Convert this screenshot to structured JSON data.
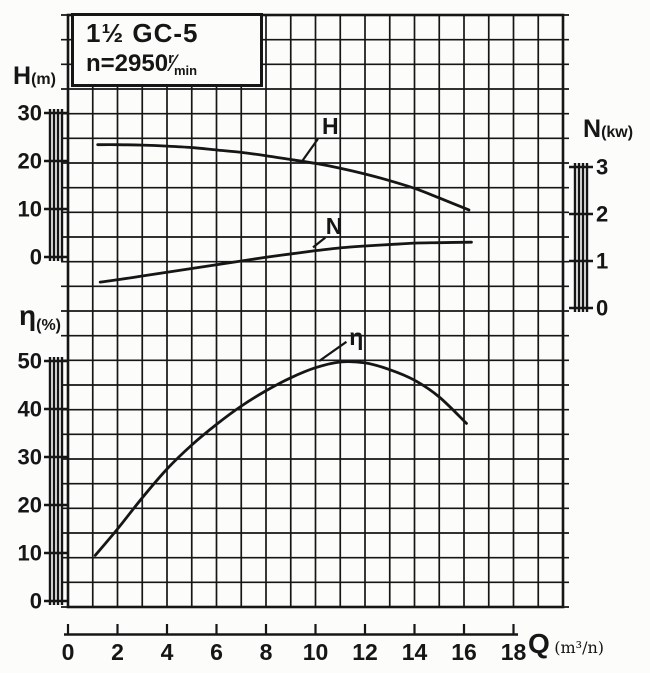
{
  "meta": {
    "ink": "#161616",
    "paper": "#fcfcfa"
  },
  "title_box": {
    "model": "1½ GC-5",
    "speed_prefix": "n=2950",
    "speed_numerator": "r",
    "speed_slash": "⁄",
    "speed_denominator": "min"
  },
  "axes": {
    "H": {
      "label": "H",
      "unit": "(m)"
    },
    "N": {
      "label": "N",
      "unit": "(kw)"
    },
    "eta": {
      "label": "η",
      "unit": "(%)"
    },
    "Q": {
      "label": "Q",
      "unit": "(m³/n)"
    }
  },
  "chart_data": {
    "type": "line",
    "title": "1½ GC-5  n=2950 r/min  pump performance curves",
    "xlabel": "Q (m³/n)",
    "x_ticks": [
      0,
      2,
      4,
      6,
      8,
      10,
      12,
      14,
      16,
      18
    ],
    "x_grid_range": [
      0,
      20
    ],
    "grid": "on",
    "legend": "curve labels with leader lines",
    "series": [
      {
        "name": "H",
        "axis": "H",
        "ylabel": "H (m)",
        "ylim": [
          0,
          30
        ],
        "ticks": [
          0,
          10,
          20,
          30
        ],
        "points": [
          [
            1.2,
            23.4
          ],
          [
            2,
            23.4
          ],
          [
            3,
            23.3
          ],
          [
            4,
            23.1
          ],
          [
            5,
            22.8
          ],
          [
            6,
            22.3
          ],
          [
            7,
            21.8
          ],
          [
            8,
            21.1
          ],
          [
            9,
            20.3
          ],
          [
            10,
            19.5
          ],
          [
            11,
            18.5
          ],
          [
            12,
            17.3
          ],
          [
            13,
            15.9
          ],
          [
            14,
            14.3
          ],
          [
            15,
            12.3
          ],
          [
            16.2,
            9.8
          ]
        ]
      },
      {
        "name": "N",
        "axis": "N",
        "ylabel": "N (kw)",
        "ylim": [
          0,
          3
        ],
        "ticks": [
          0,
          1,
          2,
          3
        ],
        "points": [
          [
            1.3,
            0.55
          ],
          [
            2,
            0.6
          ],
          [
            3,
            0.68
          ],
          [
            4,
            0.76
          ],
          [
            5,
            0.84
          ],
          [
            6,
            0.92
          ],
          [
            7,
            1.0
          ],
          [
            8,
            1.08
          ],
          [
            9,
            1.15
          ],
          [
            10,
            1.22
          ],
          [
            11,
            1.28
          ],
          [
            12,
            1.32
          ],
          [
            13,
            1.35
          ],
          [
            14,
            1.38
          ],
          [
            15,
            1.39
          ],
          [
            16.3,
            1.4
          ]
        ]
      },
      {
        "name": "η",
        "axis": "eta",
        "ylabel": "η (%)",
        "ylim": [
          0,
          50
        ],
        "ticks": [
          0,
          10,
          20,
          30,
          40,
          50
        ],
        "points": [
          [
            1.1,
            9.5
          ],
          [
            2,
            15
          ],
          [
            3,
            21.5
          ],
          [
            4,
            27.5
          ],
          [
            5,
            32.5
          ],
          [
            6,
            36.8
          ],
          [
            7,
            40.6
          ],
          [
            8,
            43.8
          ],
          [
            9,
            46.5
          ],
          [
            10,
            48.6
          ],
          [
            11,
            49.8
          ],
          [
            12,
            49.6
          ],
          [
            13,
            48.2
          ],
          [
            14,
            46.0
          ],
          [
            15,
            42.5
          ],
          [
            16.1,
            37.0
          ]
        ]
      }
    ]
  },
  "curve_labels": [
    {
      "text": "H",
      "axis": "H",
      "pos": [
        10.6,
        27.3
      ],
      "leader": [
        [
          9.45,
          19.9
        ],
        [
          10.1,
          24.6
        ]
      ]
    },
    {
      "text": "N",
      "axis": "N",
      "pos": [
        10.75,
        1.75
      ],
      "leader": [
        [
          9.9,
          1.29
        ],
        [
          10.4,
          1.5
        ]
      ]
    },
    {
      "text": "η",
      "axis": "eta",
      "pos": [
        11.65,
        55.0
      ],
      "leader": [
        [
          10.15,
          50.0
        ],
        [
          11.25,
          54.0
        ]
      ]
    }
  ]
}
